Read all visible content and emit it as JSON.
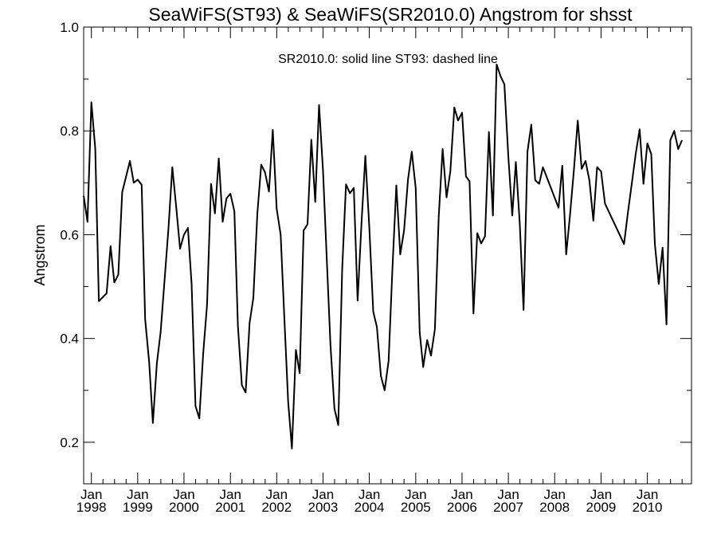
{
  "chart_data": {
    "type": "line",
    "title": "SeaWiFS(ST93) & SeaWiFS(SR2010.0)  Angstrom for shsst",
    "annotation": "SR2010.0: solid line   ST93: dashed line",
    "xlabel": "",
    "ylabel": "Angstrom",
    "xlim": [
      "1997-11-01",
      "2010-12-15"
    ],
    "ylim": [
      0.12,
      1.0
    ],
    "yticks": [
      0.2,
      0.4,
      0.6,
      0.8,
      1.0
    ],
    "ytick_labels": [
      "0.2",
      "0.4",
      "0.6",
      "0.8",
      "1.0"
    ],
    "xticks": [
      {
        "month": "Jan",
        "year": "1998",
        "date": "1998-01-01"
      },
      {
        "month": "Jan",
        "year": "1999",
        "date": "1999-01-01"
      },
      {
        "month": "Jan",
        "year": "2000",
        "date": "2000-01-01"
      },
      {
        "month": "Jan",
        "year": "2001",
        "date": "2001-01-01"
      },
      {
        "month": "Jan",
        "year": "2002",
        "date": "2002-01-01"
      },
      {
        "month": "Jan",
        "year": "2003",
        "date": "2003-01-01"
      },
      {
        "month": "Jan",
        "year": "2004",
        "date": "2004-01-01"
      },
      {
        "month": "Jan",
        "year": "2005",
        "date": "2005-01-01"
      },
      {
        "month": "Jan",
        "year": "2006",
        "date": "2006-01-01"
      },
      {
        "month": "Jan",
        "year": "2007",
        "date": "2007-01-01"
      },
      {
        "month": "Jan",
        "year": "2008",
        "date": "2008-01-01"
      },
      {
        "month": "Jan",
        "year": "2009",
        "date": "2009-01-01"
      },
      {
        "month": "Jan",
        "year": "2010",
        "date": "2010-01-01"
      }
    ],
    "grid": false,
    "series": [
      {
        "name": "SR2010.0",
        "style": "solid",
        "color": "#000000",
        "points": [
          [
            "1997-11-01",
            0.675
          ],
          [
            "1997-12-01",
            0.625
          ],
          [
            "1998-01-01",
            0.855
          ],
          [
            "1998-02-01",
            0.765
          ],
          [
            "1998-03-01",
            0.472
          ],
          [
            "1998-05-01",
            0.487
          ],
          [
            "1998-06-01",
            0.578
          ],
          [
            "1998-07-01",
            0.508
          ],
          [
            "1998-08-01",
            0.523
          ],
          [
            "1998-09-01",
            0.682
          ],
          [
            "1998-11-01",
            0.742
          ],
          [
            "1998-12-01",
            0.7
          ],
          [
            "1999-01-01",
            0.706
          ],
          [
            "1999-02-01",
            0.696
          ],
          [
            "1999-03-01",
            0.437
          ],
          [
            "1999-04-01",
            0.355
          ],
          [
            "1999-05-01",
            0.237
          ],
          [
            "1999-06-01",
            0.352
          ],
          [
            "1999-07-01",
            0.412
          ],
          [
            "1999-08-01",
            0.513
          ],
          [
            "1999-09-01",
            0.613
          ],
          [
            "1999-10-01",
            0.73
          ],
          [
            "1999-11-01",
            0.653
          ],
          [
            "1999-12-01",
            0.573
          ],
          [
            "2000-01-01",
            0.6
          ],
          [
            "2000-02-01",
            0.613
          ],
          [
            "2000-03-01",
            0.505
          ],
          [
            "2000-04-01",
            0.27
          ],
          [
            "2000-05-01",
            0.246
          ],
          [
            "2000-06-01",
            0.372
          ],
          [
            "2000-07-01",
            0.465
          ],
          [
            "2000-08-01",
            0.698
          ],
          [
            "2000-09-01",
            0.641
          ],
          [
            "2000-10-01",
            0.747
          ],
          [
            "2000-11-01",
            0.625
          ],
          [
            "2000-12-01",
            0.67
          ],
          [
            "2001-01-01",
            0.679
          ],
          [
            "2001-02-01",
            0.645
          ],
          [
            "2001-03-01",
            0.425
          ],
          [
            "2001-04-01",
            0.31
          ],
          [
            "2001-05-01",
            0.296
          ],
          [
            "2001-06-01",
            0.43
          ],
          [
            "2001-07-01",
            0.478
          ],
          [
            "2001-08-01",
            0.64
          ],
          [
            "2001-09-01",
            0.735
          ],
          [
            "2001-10-01",
            0.72
          ],
          [
            "2001-11-01",
            0.683
          ],
          [
            "2001-12-01",
            0.802
          ],
          [
            "2002-01-01",
            0.65
          ],
          [
            "2002-02-01",
            0.6
          ],
          [
            "2002-03-01",
            0.447
          ],
          [
            "2002-04-01",
            0.278
          ],
          [
            "2002-05-01",
            0.188
          ],
          [
            "2002-06-01",
            0.378
          ],
          [
            "2002-07-01",
            0.333
          ],
          [
            "2002-08-01",
            0.608
          ],
          [
            "2002-09-01",
            0.62
          ],
          [
            "2002-10-01",
            0.783
          ],
          [
            "2002-11-01",
            0.663
          ],
          [
            "2002-12-01",
            0.85
          ],
          [
            "2003-01-01",
            0.722
          ],
          [
            "2003-02-01",
            0.545
          ],
          [
            "2003-03-01",
            0.388
          ],
          [
            "2003-04-01",
            0.265
          ],
          [
            "2003-05-01",
            0.233
          ],
          [
            "2003-06-01",
            0.532
          ],
          [
            "2003-07-01",
            0.697
          ],
          [
            "2003-08-01",
            0.68
          ],
          [
            "2003-09-01",
            0.69
          ],
          [
            "2003-10-01",
            0.473
          ],
          [
            "2003-11-01",
            0.626
          ],
          [
            "2003-12-01",
            0.752
          ],
          [
            "2004-01-01",
            0.613
          ],
          [
            "2004-02-01",
            0.452
          ],
          [
            "2004-03-01",
            0.422
          ],
          [
            "2004-04-01",
            0.328
          ],
          [
            "2004-05-01",
            0.3
          ],
          [
            "2004-06-01",
            0.357
          ],
          [
            "2004-07-01",
            0.535
          ],
          [
            "2004-08-01",
            0.695
          ],
          [
            "2004-09-01",
            0.562
          ],
          [
            "2004-10-01",
            0.608
          ],
          [
            "2004-11-01",
            0.706
          ],
          [
            "2004-12-01",
            0.76
          ],
          [
            "2005-01-01",
            0.69
          ],
          [
            "2005-02-01",
            0.412
          ],
          [
            "2005-03-01",
            0.345
          ],
          [
            "2005-04-01",
            0.397
          ],
          [
            "2005-05-01",
            0.367
          ],
          [
            "2005-06-01",
            0.418
          ],
          [
            "2005-07-01",
            0.635
          ],
          [
            "2005-08-01",
            0.765
          ],
          [
            "2005-09-01",
            0.672
          ],
          [
            "2005-10-01",
            0.722
          ],
          [
            "2005-11-01",
            0.845
          ],
          [
            "2005-12-01",
            0.82
          ],
          [
            "2006-01-01",
            0.835
          ],
          [
            "2006-02-01",
            0.712
          ],
          [
            "2006-03-01",
            0.703
          ],
          [
            "2006-04-01",
            0.448
          ],
          [
            "2006-05-01",
            0.603
          ],
          [
            "2006-06-01",
            0.583
          ],
          [
            "2006-07-01",
            0.597
          ],
          [
            "2006-08-01",
            0.798
          ],
          [
            "2006-09-01",
            0.637
          ],
          [
            "2006-10-01",
            0.928
          ],
          [
            "2006-11-01",
            0.905
          ],
          [
            "2006-12-01",
            0.89
          ],
          [
            "2007-01-01",
            0.75
          ],
          [
            "2007-02-01",
            0.637
          ],
          [
            "2007-03-01",
            0.74
          ],
          [
            "2007-04-01",
            0.622
          ],
          [
            "2007-05-01",
            0.455
          ],
          [
            "2007-06-01",
            0.76
          ],
          [
            "2007-07-01",
            0.812
          ],
          [
            "2007-08-01",
            0.705
          ],
          [
            "2007-09-01",
            0.698
          ],
          [
            "2007-10-01",
            0.73
          ],
          [
            "2008-02-01",
            0.652
          ],
          [
            "2008-03-01",
            0.733
          ],
          [
            "2008-04-01",
            0.562
          ],
          [
            "2008-05-01",
            0.638
          ],
          [
            "2008-06-01",
            0.725
          ],
          [
            "2008-07-01",
            0.82
          ],
          [
            "2008-08-01",
            0.727
          ],
          [
            "2008-09-01",
            0.742
          ],
          [
            "2008-10-01",
            0.705
          ],
          [
            "2008-11-01",
            0.627
          ],
          [
            "2008-12-01",
            0.73
          ],
          [
            "2009-01-01",
            0.722
          ],
          [
            "2009-02-01",
            0.66
          ],
          [
            "2009-07-01",
            0.582
          ],
          [
            "2009-08-01",
            0.643
          ],
          [
            "2009-09-01",
            0.7
          ],
          [
            "2009-10-01",
            0.755
          ],
          [
            "2009-11-01",
            0.803
          ],
          [
            "2009-12-01",
            0.698
          ],
          [
            "2010-01-01",
            0.776
          ],
          [
            "2010-02-01",
            0.755
          ],
          [
            "2010-03-01",
            0.582
          ],
          [
            "2010-04-01",
            0.505
          ],
          [
            "2010-05-01",
            0.575
          ],
          [
            "2010-06-01",
            0.427
          ],
          [
            "2010-07-01",
            0.782
          ],
          [
            "2010-08-01",
            0.8
          ],
          [
            "2010-09-01",
            0.765
          ],
          [
            "2010-10-01",
            0.782
          ]
        ]
      },
      {
        "name": "ST93",
        "style": "dashed",
        "color": "#000000",
        "points": []
      }
    ]
  }
}
